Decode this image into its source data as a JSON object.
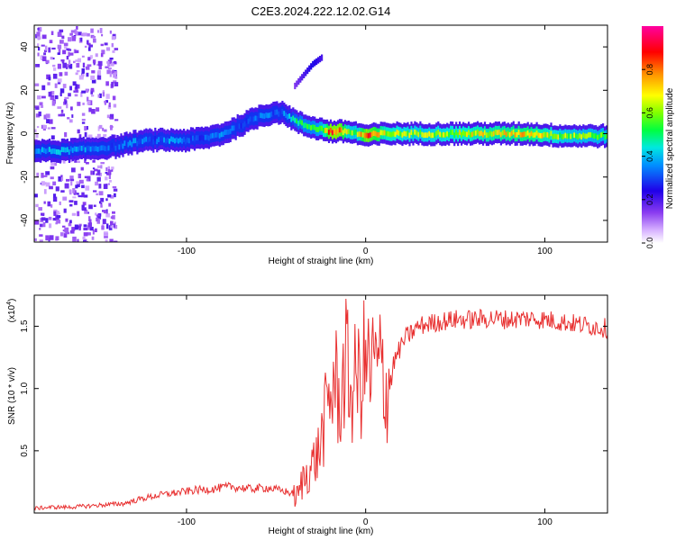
{
  "figure_title": "C2E3.2024.222.12.02.G14",
  "chart_data": [
    {
      "type": "heatmap",
      "title": "C2E3.2024.222.12.02.G14",
      "xlabel": "Height of straight line (km)",
      "ylabel": "Frequency (Hz)",
      "xlim": [
        -185,
        135
      ],
      "ylim": [
        -50,
        50
      ],
      "x_ticks": [
        -100,
        0,
        100
      ],
      "x_tick_labels": [
        "-100",
        "0",
        "100"
      ],
      "y_ticks": [
        -40,
        -20,
        0,
        20,
        40
      ],
      "y_tick_labels": [
        "-40",
        "-20",
        "0",
        "20",
        "40"
      ],
      "colorbar": {
        "label": "Normalized spectral amplitude",
        "range": [
          0,
          1
        ],
        "ticks": [
          0.0,
          0.2,
          0.4,
          0.6,
          0.8
        ],
        "tick_labels": [
          "0.0",
          "0.2",
          "0.4",
          "0.6",
          "0.8"
        ],
        "colors": [
          "#ffffff",
          "#b06cf0",
          "#4b0ad4",
          "#0000ff",
          "#00b4ff",
          "#00ffb0",
          "#00ff00",
          "#a8ff00",
          "#ffff00",
          "#ffaa00",
          "#ff0000",
          "#ff00a0"
        ]
      },
      "ridge": {
        "x": [
          -185,
          -170,
          -155,
          -140,
          -130,
          -120,
          -110,
          -100,
          -90,
          -80,
          -70,
          -60,
          -55,
          -50,
          -45,
          -40,
          -35,
          -30,
          -25,
          -20,
          -15,
          -10,
          -5,
          0,
          10,
          30,
          60,
          90,
          110,
          135
        ],
        "freq": [
          -8,
          -8,
          -7,
          -6,
          -4,
          -3,
          -3,
          -3,
          -2,
          0,
          4,
          8,
          9,
          10,
          9,
          6,
          4,
          3,
          2,
          1,
          1,
          1,
          0,
          -1,
          0,
          0,
          0,
          0,
          -1,
          -1
        ],
        "amplitude": [
          0.35,
          0.4,
          0.35,
          0.3,
          0.35,
          0.3,
          0.35,
          0.3,
          0.3,
          0.35,
          0.3,
          0.35,
          0.35,
          0.3,
          0.35,
          0.45,
          0.5,
          0.5,
          0.55,
          0.85,
          0.85,
          0.6,
          0.6,
          0.85,
          0.65,
          0.6,
          0.65,
          0.7,
          0.6,
          0.55
        ]
      },
      "branch": {
        "x": [
          -40,
          -35,
          -30,
          -25
        ],
        "freq": [
          22,
          27,
          32,
          35
        ],
        "amplitude": [
          0.15,
          0.2,
          0.25,
          0.2
        ]
      }
    },
    {
      "type": "line",
      "xlabel": "Height of straight line (km)",
      "ylabel": "SNR (10 * v/v)",
      "y_multiplier_label": "(x10^4)",
      "y_multiplier_base": "(x10",
      "y_multiplier_exp": "4",
      "y_multiplier_close": ")",
      "xlim": [
        -185,
        135
      ],
      "ylim": [
        0,
        1.75
      ],
      "x_ticks": [
        -100,
        0,
        100
      ],
      "x_tick_labels": [
        "-100",
        "0",
        "100"
      ],
      "y_ticks": [
        0.5,
        1.0,
        1.5
      ],
      "y_tick_labels": [
        "0.5",
        "1.0",
        "1.5"
      ],
      "line_color": "#e83030",
      "series": [
        {
          "name": "SNR",
          "x": [
            -185,
            -175,
            -165,
            -155,
            -145,
            -135,
            -125,
            -115,
            -105,
            -95,
            -85,
            -75,
            -65,
            -55,
            -45,
            -38,
            -35,
            -32,
            -29,
            -26,
            -23,
            -21,
            -19,
            -17,
            -15,
            -13,
            -11,
            -9,
            -7,
            -5,
            -3,
            -1,
            1,
            3,
            5,
            7,
            9,
            11,
            13,
            15,
            18,
            22,
            26,
            30,
            40,
            50,
            60,
            70,
            80,
            90,
            100,
            110,
            120,
            135
          ],
          "values": [
            0.04,
            0.05,
            0.05,
            0.06,
            0.07,
            0.08,
            0.12,
            0.15,
            0.17,
            0.19,
            0.2,
            0.22,
            0.2,
            0.21,
            0.18,
            0.15,
            0.3,
            0.38,
            0.45,
            0.55,
            0.8,
            0.95,
            1.05,
            1.2,
            0.95,
            1.1,
            1.35,
            1.1,
            1.05,
            1.25,
            1.1,
            1.3,
            1.3,
            1.2,
            1.35,
            1.2,
            1.35,
            1.05,
            1.15,
            1.2,
            1.3,
            1.42,
            1.47,
            1.52,
            1.55,
            1.57,
            1.57,
            1.58,
            1.57,
            1.58,
            1.57,
            1.55,
            1.53,
            1.5
          ]
        }
      ]
    }
  ]
}
